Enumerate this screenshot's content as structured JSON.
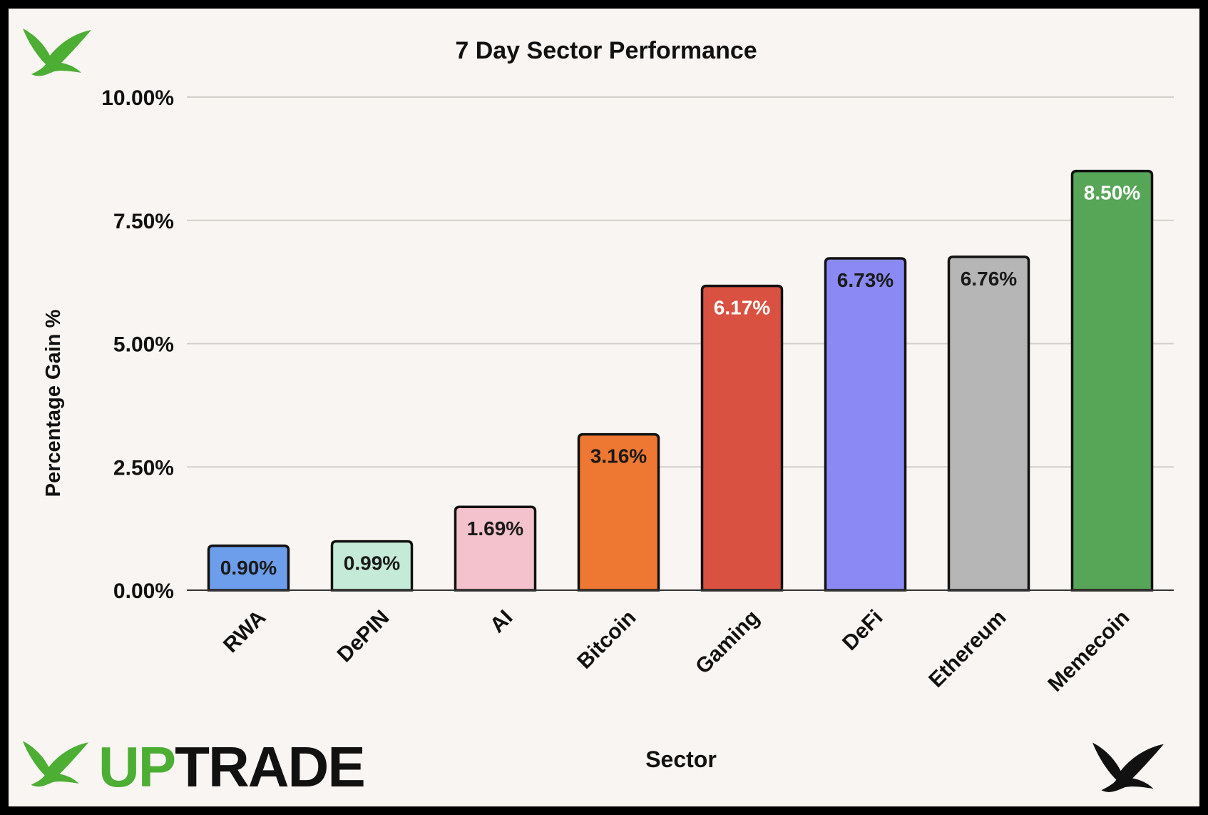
{
  "chart_data": {
    "type": "bar",
    "title": "7 Day Sector Performance",
    "xlabel": "Sector",
    "ylabel": "Percentage Gain %",
    "categories": [
      "RWA",
      "DePIN",
      "AI",
      "Bitcoin",
      "Gaming",
      "DeFi",
      "Ethereum",
      "Memecoin"
    ],
    "values": [
      0.9,
      0.99,
      1.69,
      3.16,
      6.17,
      6.73,
      6.76,
      8.5
    ],
    "data_labels": [
      "0.90%",
      "0.99%",
      "1.69%",
      "3.16%",
      "6.17%",
      "6.73%",
      "6.76%",
      "8.50%"
    ],
    "colors": [
      "#6d9eeb",
      "#c5ead8",
      "#f4c2cc",
      "#ee7732",
      "#d95141",
      "#8b8af4",
      "#b6b6b6",
      "#57a658"
    ],
    "label_colors": [
      "#1a1a1a",
      "#1a1a1a",
      "#1a1a1a",
      "#1a1a1a",
      "#ffffff",
      "#1a1a1a",
      "#1a1a1a",
      "#ffffff"
    ],
    "ylim": [
      0,
      10
    ],
    "yticks": [
      0,
      2.5,
      5,
      7.5,
      10
    ],
    "ytick_labels": [
      "0.00%",
      "2.50%",
      "5.00%",
      "7.50%",
      "10.00%"
    ],
    "grid": true,
    "legend": "none"
  },
  "brand": {
    "name_part1": "UP",
    "name_part2": "TRADE",
    "accent": "#4cae33",
    "dark": "#111111",
    "logo_icons": [
      "bird-logo-icon",
      "bird-logo-icon",
      "bird-logo-icon"
    ]
  }
}
